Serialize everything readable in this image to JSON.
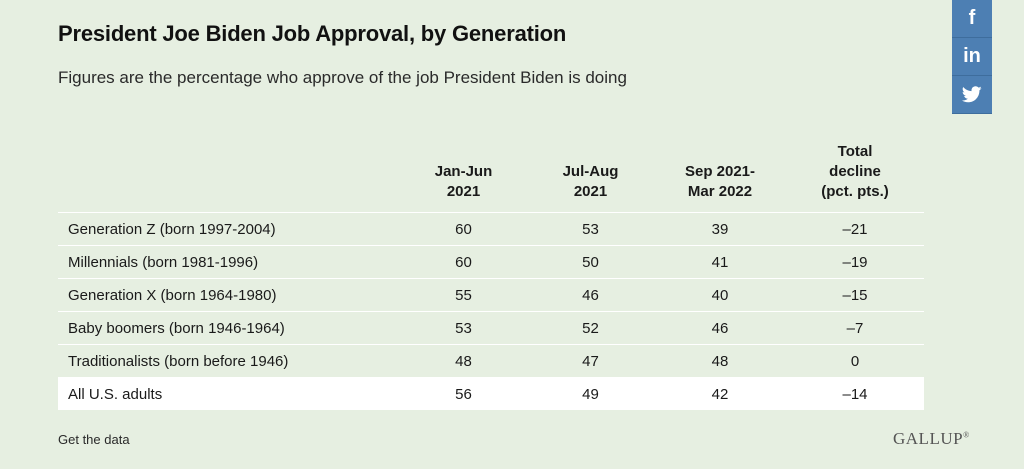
{
  "header": {
    "title": "President Joe Biden Job Approval, by Generation",
    "subtitle": "Figures are the percentage who approve of the job President Biden is doing"
  },
  "social": {
    "facebook_glyph": "f",
    "linkedin_glyph": "in",
    "icons": [
      "facebook-icon",
      "linkedin-icon",
      "twitter-icon"
    ],
    "color": "#4d7fb3"
  },
  "chart_data": {
    "type": "table",
    "title": "President Joe Biden Job Approval, by Generation",
    "subtitle": "Figures are the percentage who approve of the job President Biden is doing",
    "columns": [
      {
        "line1": "Jan-Jun",
        "line2": "2021"
      },
      {
        "line1": "Jul-Aug",
        "line2": "2021"
      },
      {
        "line1": "Sep 2021-",
        "line2": "Mar 2022"
      },
      {
        "line1": "Total",
        "line2": "decline",
        "line3": "(pct. pts.)"
      }
    ],
    "rows": [
      {
        "label": "Generation Z (born 1997-2004)",
        "values": [
          "60",
          "53",
          "39",
          "–21"
        ]
      },
      {
        "label": "Millennials (born 1981-1996)",
        "values": [
          "60",
          "50",
          "41",
          "–19"
        ]
      },
      {
        "label": "Generation X (born 1964-1980)",
        "values": [
          "55",
          "46",
          "40",
          "–15"
        ]
      },
      {
        "label": "Baby boomers (born 1946-1964)",
        "values": [
          "53",
          "52",
          "46",
          "–7"
        ]
      },
      {
        "label": "Traditionalists (born before 1946)",
        "values": [
          "48",
          "47",
          "48",
          "0"
        ]
      },
      {
        "label": "All U.S. adults",
        "values": [
          "56",
          "49",
          "42",
          "–14"
        ]
      }
    ]
  },
  "footer": {
    "link_label": "Get the data",
    "logo_text": "GALLUP",
    "logo_mark": "®"
  },
  "colors": {
    "background": "#e6efe1",
    "total_row": "#ffffff",
    "social": "#4d7fb3"
  }
}
